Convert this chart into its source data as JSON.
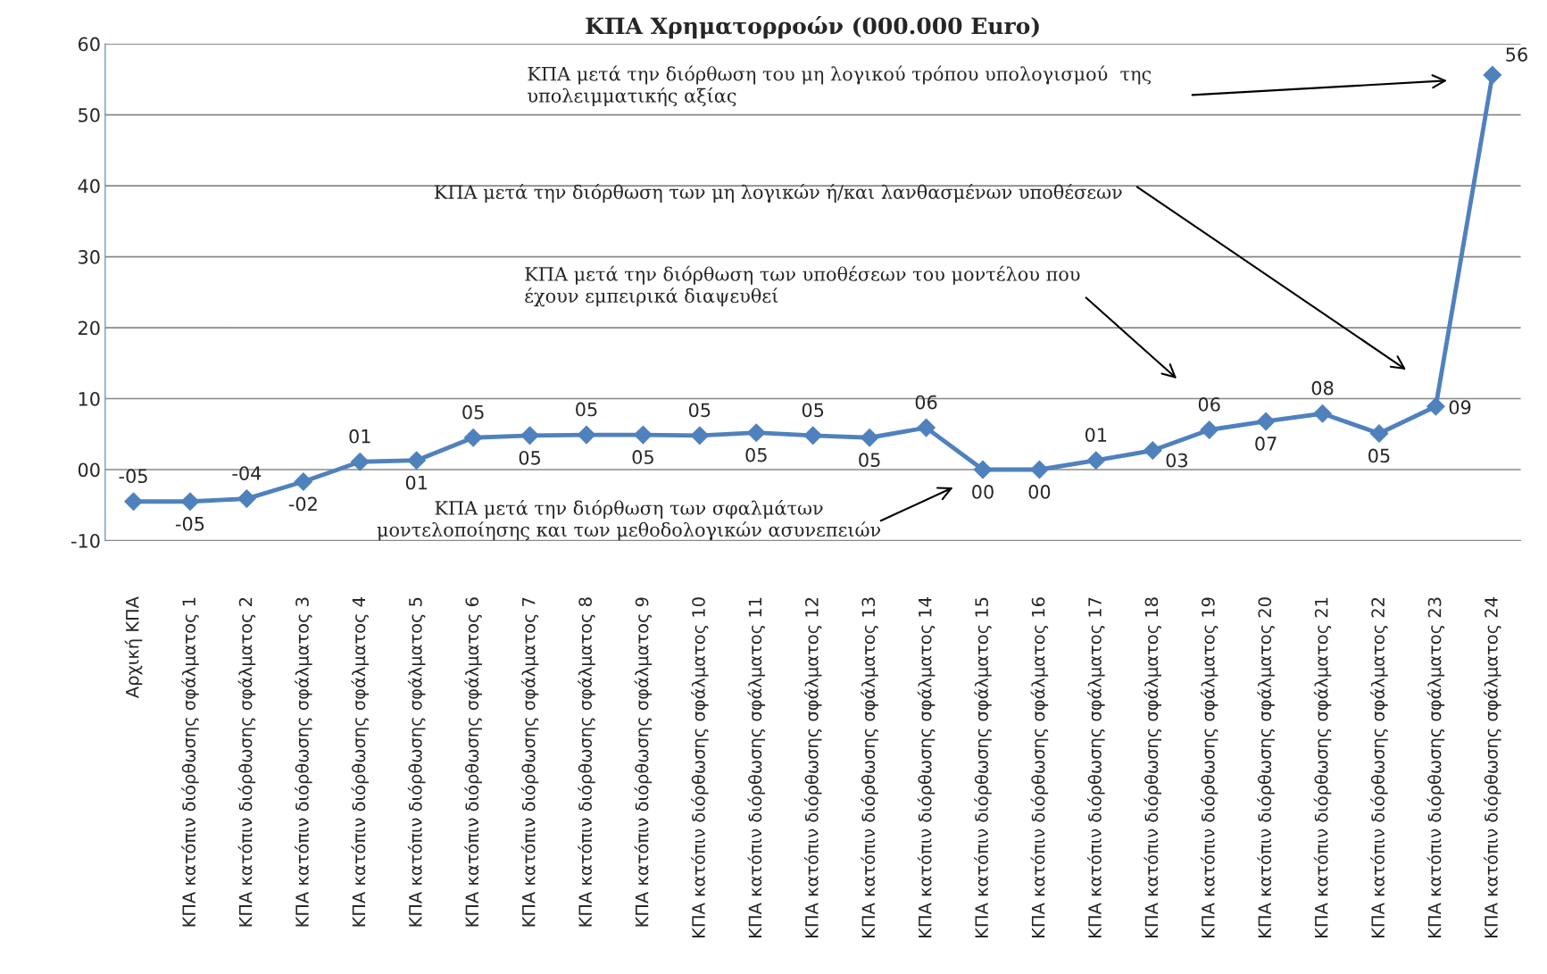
{
  "chart_data": {
    "type": "line",
    "title": "ΚΠΑ Χρηματορροών (000.000 Euro)",
    "categories": [
      "Αρχική ΚΠΑ",
      "ΚΠΑ κατόπιν διόρθωσης σφάλματος 1",
      "ΚΠΑ κατόπιν διόρθωσης σφάλματος 2",
      "ΚΠΑ κατόπιν διόρθωσης σφάλματος 3",
      "ΚΠΑ κατόπιν διόρθωσης σφάλματος 4",
      "ΚΠΑ κατόπιν διόρθωσης σφάλματος 5",
      "ΚΠΑ κατόπιν διόρθωσης σφάλματος 6",
      "ΚΠΑ κατόπιν διόρθωσης σφάλματος 7",
      "ΚΠΑ κατόπιν διόρθωσης σφάλματος 8",
      "ΚΠΑ κατόπιν διόρθωσης σφάλματος 9",
      "ΚΠΑ κατόπιν διόρθωσης σφάλματος 10",
      "ΚΠΑ κατόπιν διόρθωσης σφάλματος 11",
      "ΚΠΑ κατόπιν διόρθωσης σφάλματος 12",
      "ΚΠΑ κατόπιν διόρθωσης σφάλματος 13",
      "ΚΠΑ κατόπιν διόρθωσης σφάλματος 14",
      "ΚΠΑ κατόπιν διόρθωσης σφάλματος 15",
      "ΚΠΑ κατόπιν διόρθωσης σφάλματος 16",
      "ΚΠΑ κατόπιν διόρθωσης σφάλματος 17",
      "ΚΠΑ κατόπιν διόρθωσης σφάλματος 18",
      "ΚΠΑ κατόπιν διόρθωσης σφάλματος 19",
      "ΚΠΑ κατόπιν διόρθωσης σφάλματος 20",
      "ΚΠΑ κατόπιν διόρθωσης σφάλματος 21",
      "ΚΠΑ κατόπιν διόρθωσης σφάλματος 22",
      "ΚΠΑ κατόπιν διόρθωσης σφάλματος 23",
      "ΚΠΑ κατόπιν διόρθωσης σφάλματος 24"
    ],
    "series": [
      {
        "color": "#4f81bd",
        "values": [
          -4.5,
          -4.5,
          -4.1,
          -1.7,
          1.1,
          1.3,
          4.5,
          4.8,
          4.9,
          4.9,
          4.8,
          5.2,
          4.8,
          4.5,
          5.9,
          0,
          0,
          1.3,
          2.7,
          5.6,
          6.8,
          7.9,
          5.1,
          8.9,
          55.6
        ],
        "value_labels": [
          "-05",
          "-05",
          "-04",
          "-02",
          "01",
          "01",
          "05",
          "05",
          "05",
          "05",
          "05",
          "05",
          "05",
          "05",
          "06",
          "00",
          "00",
          "01",
          "03",
          "06",
          "07",
          "08",
          "05",
          "09",
          "56"
        ]
      }
    ],
    "marker": "diamond",
    "line_style": "solid",
    "grid": "y",
    "legend": false,
    "ylim": [
      -10,
      60
    ],
    "yticks": [
      {
        "value": -10,
        "label": "-10"
      },
      {
        "value": 0,
        "label": "00"
      },
      10,
      20,
      30,
      40,
      50,
      60
    ],
    "annotations": [
      "ΚΠΑ μετά την διόρθωση του μη λογικού τρόπου υπολογισμού  της\nυπολειμματικής αξίας",
      "ΚΠΑ μετά την διόρθωση των μη λογικών ή/και λανθασμένων υποθέσεων",
      "ΚΠΑ μετά την διόρθωση των υποθέσεων του μοντέλου που\nέχουν εμπειρικά διαψευθεί",
      "ΚΠΑ μετά την διόρθωση των σφαλμάτων\nμοντελοποίησης και των μεθοδολογικών ασυνεπειών"
    ]
  }
}
